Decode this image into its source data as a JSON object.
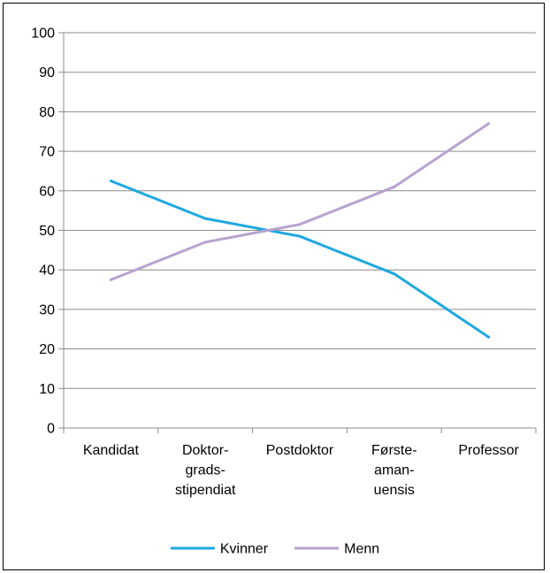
{
  "chart_data": {
    "type": "line",
    "title": "",
    "xlabel": "",
    "ylabel": "",
    "ylim": [
      0,
      100
    ],
    "yticks": [
      "0",
      "10",
      "20",
      "30",
      "40",
      "50",
      "60",
      "70",
      "80",
      "90",
      "100"
    ],
    "categories": [
      [
        "Kandidat"
      ],
      [
        "Doktor-",
        "grads-",
        "stipendiat"
      ],
      [
        "Postdoktor"
      ],
      [
        "Første-",
        "aman-",
        "uensis"
      ],
      [
        "Professor"
      ]
    ],
    "series": [
      {
        "name": "Kvinner",
        "color": "#1ea8e0",
        "values": [
          62.5,
          53,
          48.5,
          39,
          23
        ]
      },
      {
        "name": "Menn",
        "color": "#b7a3cf",
        "values": [
          37.5,
          47,
          51.5,
          61,
          77
        ]
      }
    ],
    "grid": true,
    "legend": "bottom"
  }
}
